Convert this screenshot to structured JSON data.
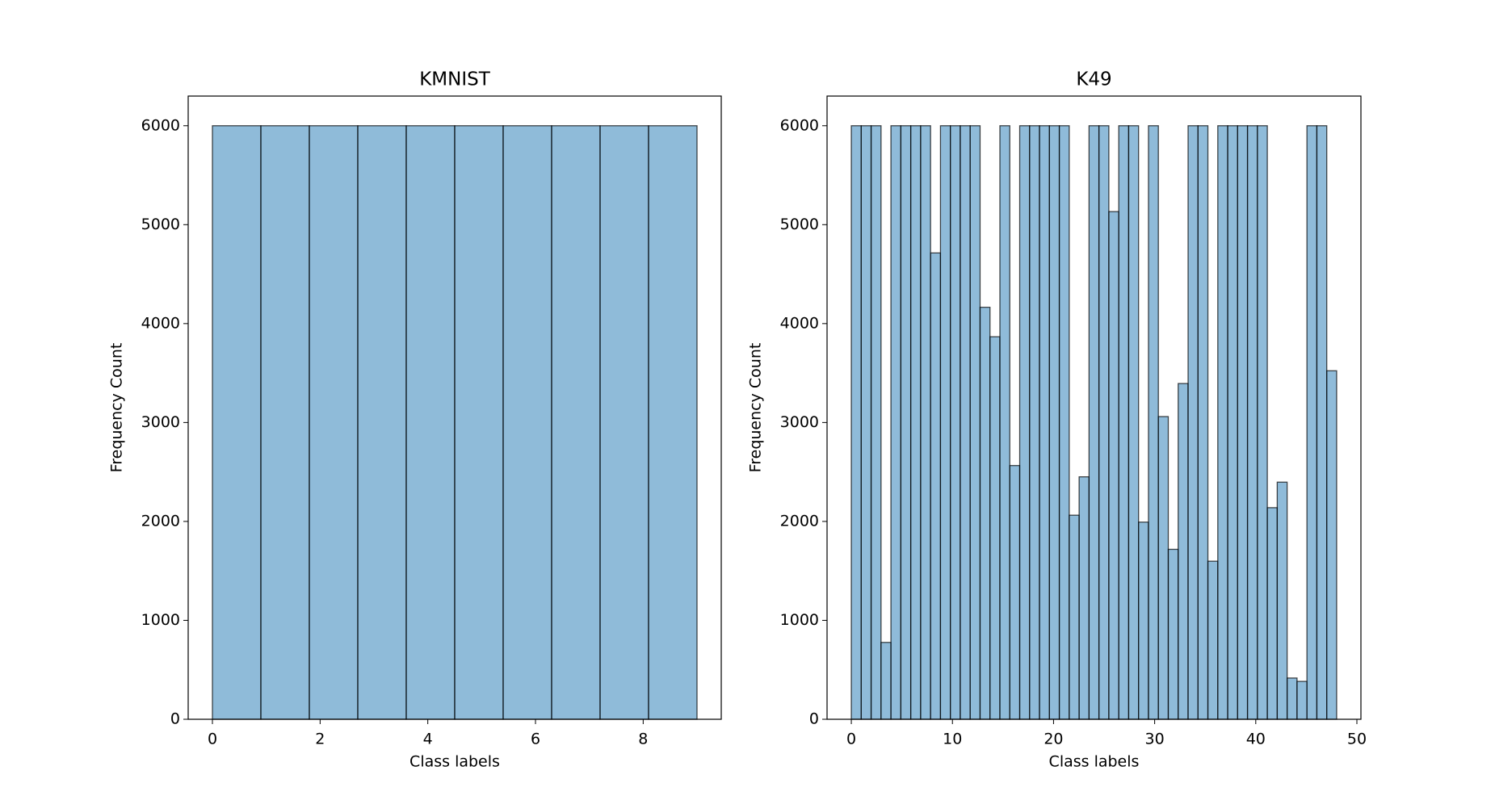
{
  "chart_data": [
    {
      "type": "histogram",
      "title": "KMNIST",
      "x_label": "Class labels",
      "y_label": "Frequency Count",
      "bins": [
        0,
        0.9,
        1.8,
        2.7,
        3.6,
        4.5,
        5.4,
        6.3,
        7.2,
        8.1,
        9
      ],
      "values": [
        6000,
        6000,
        6000,
        6000,
        6000,
        6000,
        6000,
        6000,
        6000,
        6000
      ],
      "color": "#1f77b4",
      "edgecolor": "#000000",
      "xlim": [
        -0.45,
        9.45
      ],
      "xticks": [
        0,
        2,
        4,
        6,
        8
      ],
      "ylim": [
        0,
        6300
      ],
      "yticks": [
        0,
        1000,
        2000,
        3000,
        4000,
        5000,
        6000
      ]
    },
    {
      "type": "histogram",
      "title": "K49",
      "x_label": "Class labels",
      "y_label": "Frequency Count",
      "bins": [
        0,
        0.9796,
        1.9592,
        2.9388,
        3.9184,
        4.898,
        5.8776,
        6.8571,
        7.8367,
        8.8163,
        9.7959,
        10.7755,
        11.7551,
        12.7347,
        13.7143,
        14.6939,
        15.6735,
        16.6531,
        17.6327,
        18.6122,
        19.5918,
        20.5714,
        21.551,
        22.5306,
        23.5102,
        24.4898,
        25.4694,
        26.449,
        27.4286,
        28.4082,
        29.3878,
        30.3673,
        31.3469,
        32.3265,
        33.3061,
        34.2857,
        35.2653,
        36.2449,
        37.2245,
        38.2041,
        39.1837,
        40.1633,
        41.1429,
        42.1224,
        43.102,
        44.0816,
        45.0612,
        46.0408,
        47.0204,
        48
      ],
      "values": [
        6000,
        6000,
        6000,
        777,
        6000,
        6000,
        6000,
        6000,
        4714,
        6000,
        6000,
        6000,
        6000,
        4165,
        3867,
        6000,
        2565,
        6000,
        6000,
        6000,
        6000,
        6000,
        2063,
        2451,
        6000,
        6000,
        5132,
        6000,
        6000,
        1993,
        6000,
        3060,
        1718,
        3394,
        6000,
        6000,
        1598,
        6000,
        6000,
        6000,
        6000,
        6000,
        2139,
        2397,
        417,
        383,
        6000,
        6000,
        3523
      ],
      "color": "#1f77b4",
      "edgecolor": "#000000",
      "xlim": [
        -2.4,
        50.4
      ],
      "xticks": [
        0,
        10,
        20,
        30,
        40,
        50
      ],
      "ylim": [
        0,
        6300
      ],
      "yticks": [
        0,
        1000,
        2000,
        3000,
        4000,
        5000,
        6000
      ]
    }
  ]
}
